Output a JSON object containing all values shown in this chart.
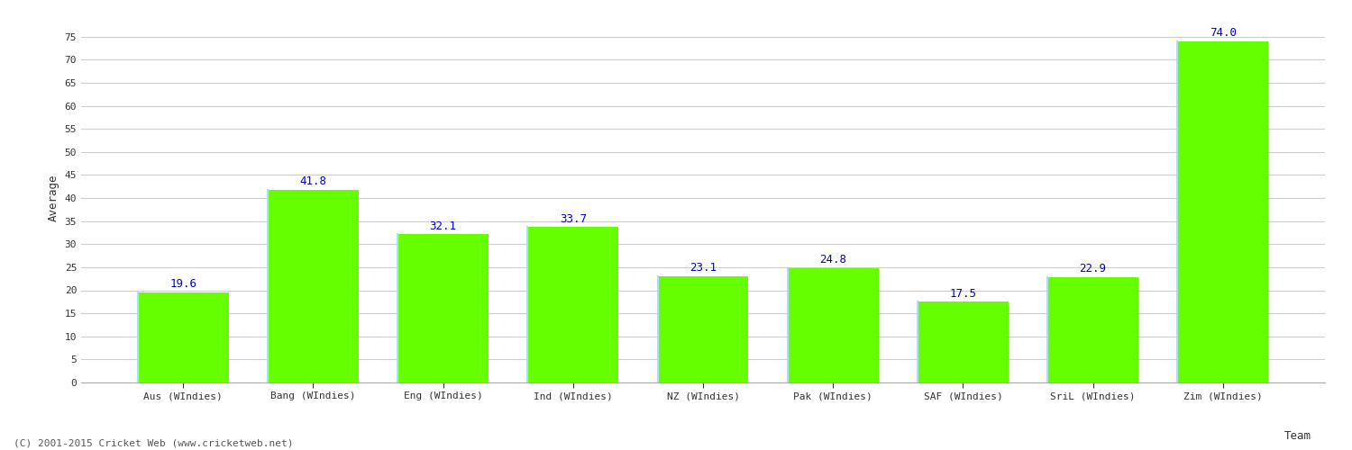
{
  "categories": [
    "Aus (WIndies)",
    "Bang (WIndies)",
    "Eng (WIndies)",
    "Ind (WIndies)",
    "NZ (WIndies)",
    "Pak (WIndies)",
    "SAF (WIndies)",
    "SriL (WIndies)",
    "Zim (WIndies)"
  ],
  "values": [
    19.6,
    41.8,
    32.1,
    33.7,
    23.1,
    24.8,
    17.5,
    22.9,
    74.0
  ],
  "bar_color": "#66ff00",
  "bar_edge_left_color": "#aaddff",
  "bar_edge_other_color": "#66ff00",
  "label_color": "#0000cc",
  "xlabel": "Team",
  "ylabel": "Average",
  "ylim": [
    0,
    80
  ],
  "yticks": [
    0,
    5,
    10,
    15,
    20,
    25,
    30,
    35,
    40,
    45,
    50,
    55,
    60,
    65,
    70,
    75
  ],
  "grid_color": "#cccccc",
  "background_color": "#ffffff",
  "footer": "(C) 2001-2015 Cricket Web (www.cricketweb.net)",
  "label_fontsize": 9,
  "axis_fontsize": 9,
  "tick_fontsize": 8,
  "footer_fontsize": 8,
  "bar_width": 0.7
}
